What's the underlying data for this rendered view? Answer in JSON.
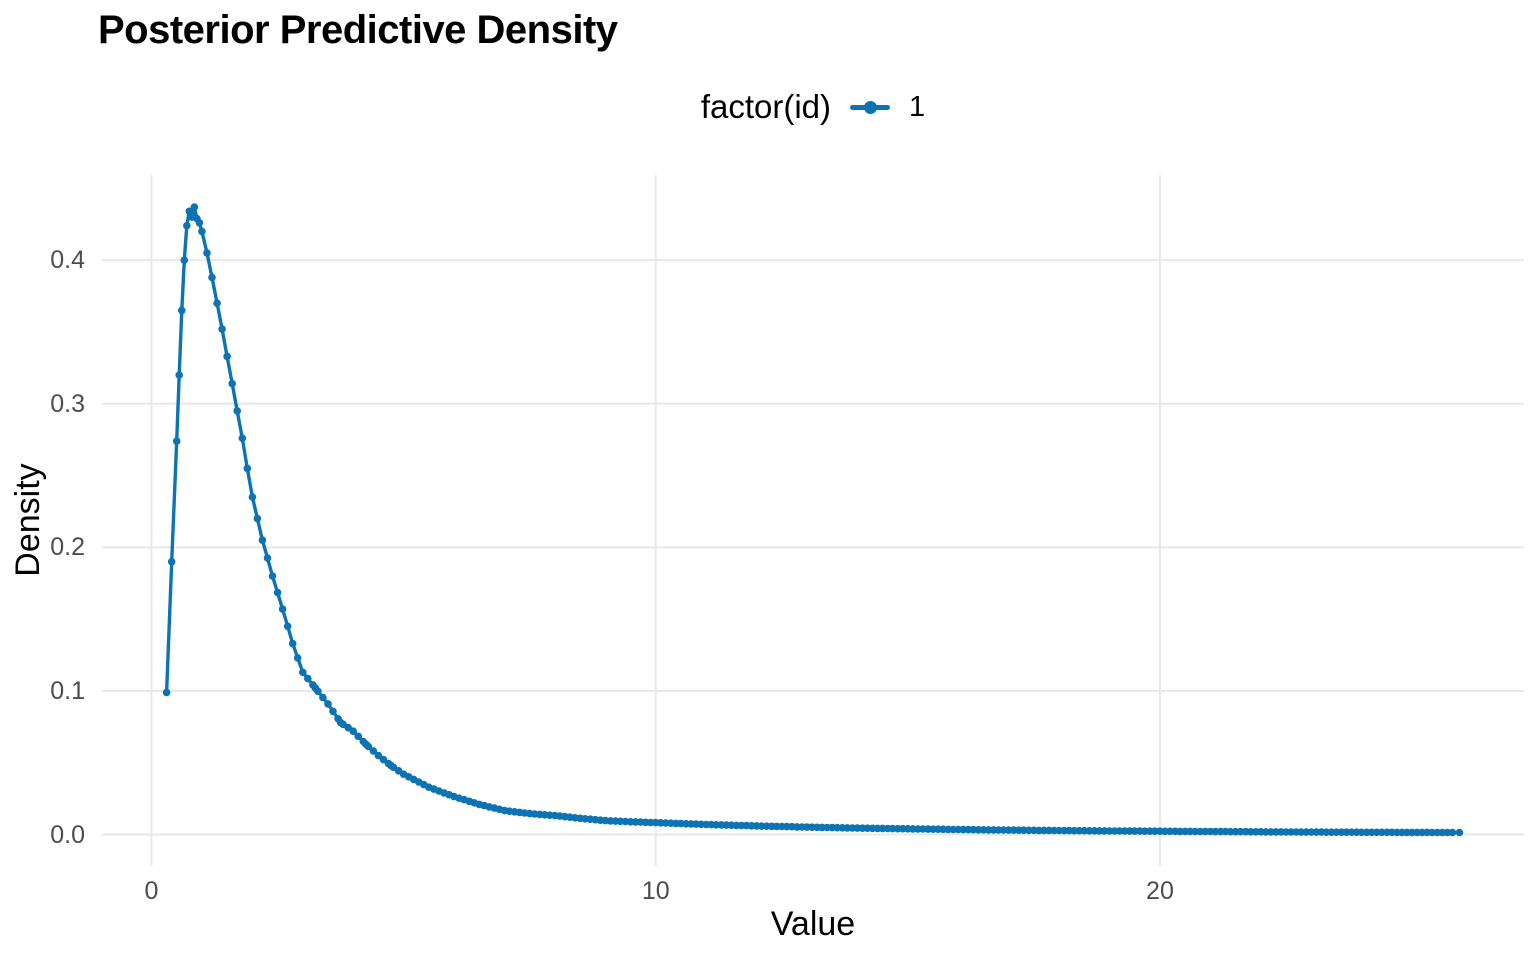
{
  "title": "Posterior Predictive Density",
  "colors": {
    "series_blue": "#0D73B2",
    "gridline": "#E8E8E8",
    "tick_text": "#4D4D4D",
    "text": "#000000",
    "background": "#FFFFFF"
  },
  "legend": {
    "title": "factor(id)",
    "position": "top-center",
    "items": [
      {
        "label": "1",
        "color": "#0D73B2"
      }
    ]
  },
  "chart_data": {
    "type": "line",
    "title": "Posterior Predictive Density",
    "xlabel": "Value",
    "ylabel": "Density",
    "grid": "major-only",
    "legend_position": "top-center",
    "x_axis": {
      "tick_labels": [
        "0",
        "10",
        "20"
      ],
      "tick_values": [
        0,
        10,
        20
      ],
      "range": [
        -0.982,
        27.22
      ]
    },
    "y_axis": {
      "tick_labels": [
        "0.0",
        "0.1",
        "0.2",
        "0.3",
        "0.4"
      ],
      "tick_values": [
        0,
        0.1,
        0.2,
        0.3,
        0.4
      ],
      "range": [
        -0.0219,
        0.4593
      ]
    },
    "series": [
      {
        "name": "1",
        "color": "#0D73B2",
        "marker": "point-and-line",
        "points": [
          [
            0.3,
            0.099
          ],
          [
            0.4,
            0.19
          ],
          [
            0.5,
            0.274
          ],
          [
            0.55,
            0.32
          ],
          [
            0.6,
            0.365
          ],
          [
            0.65,
            0.4
          ],
          [
            0.7,
            0.424
          ],
          [
            0.75,
            0.434
          ],
          [
            0.8,
            0.43
          ],
          [
            0.85,
            0.437
          ],
          [
            0.9,
            0.429
          ],
          [
            0.95,
            0.426
          ],
          [
            1.0,
            0.42
          ],
          [
            1.1,
            0.405
          ],
          [
            1.2,
            0.388
          ],
          [
            1.3,
            0.37
          ],
          [
            1.4,
            0.352
          ],
          [
            1.5,
            0.333
          ],
          [
            1.6,
            0.314
          ],
          [
            1.7,
            0.295
          ],
          [
            1.8,
            0.276
          ],
          [
            1.9,
            0.255
          ],
          [
            2.0,
            0.235
          ],
          [
            2.2,
            0.205
          ],
          [
            2.4,
            0.18
          ],
          [
            2.6,
            0.157
          ],
          [
            2.8,
            0.133
          ],
          [
            3.0,
            0.113
          ],
          [
            3.25,
            0.102
          ],
          [
            3.5,
            0.091
          ],
          [
            3.75,
            0.078
          ],
          [
            4.0,
            0.072
          ],
          [
            4.25,
            0.063
          ],
          [
            4.5,
            0.055
          ],
          [
            4.75,
            0.048
          ],
          [
            5.0,
            0.042
          ],
          [
            5.5,
            0.033
          ],
          [
            6.0,
            0.0264
          ],
          [
            6.5,
            0.021
          ],
          [
            7.0,
            0.0167
          ],
          [
            7.5,
            0.0146
          ],
          [
            8.0,
            0.0132
          ],
          [
            8.5,
            0.0113
          ],
          [
            9.0,
            0.0097
          ],
          [
            9.5,
            0.0089
          ],
          [
            10.0,
            0.0083
          ],
          [
            11.0,
            0.007
          ],
          [
            12.0,
            0.006
          ],
          [
            13.0,
            0.0052
          ],
          [
            14.0,
            0.0045
          ],
          [
            15.0,
            0.004
          ],
          [
            16.0,
            0.0035
          ],
          [
            17.0,
            0.0031
          ],
          [
            18.0,
            0.0028
          ],
          [
            19.0,
            0.0025
          ],
          [
            20.0,
            0.0023
          ],
          [
            21.0,
            0.0021
          ],
          [
            22.0,
            0.0019
          ],
          [
            23.0,
            0.0017
          ],
          [
            24.0,
            0.0016
          ],
          [
            25.0,
            0.0015
          ],
          [
            25.94,
            0.0014
          ]
        ]
      }
    ]
  },
  "render": {
    "dot_step": 0.1,
    "dot_radius": 3.8,
    "line_width": 3.4,
    "gridline_width": 2
  }
}
